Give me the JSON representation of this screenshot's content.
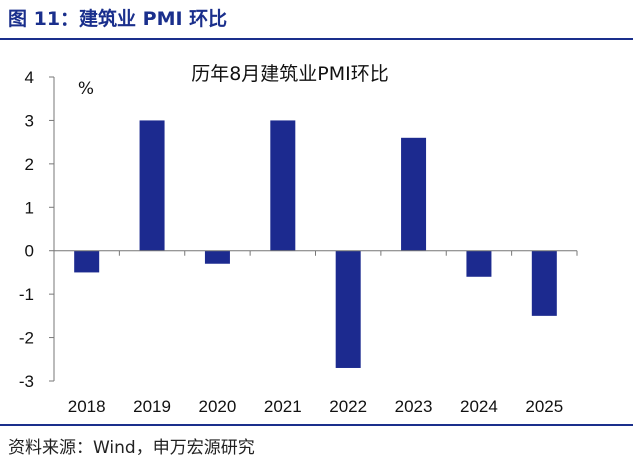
{
  "figure": {
    "title": "图 11：建筑业 PMI 环比",
    "source": "资料来源：Wind，申万宏源研究"
  },
  "colors": {
    "accent": "#1a2f8c",
    "bar": "#1c2a8f"
  },
  "chart_data": {
    "type": "bar",
    "title": "历年8月建筑业PMI环比",
    "ylabel": "%",
    "xlabel": "",
    "categories": [
      "2018",
      "2019",
      "2020",
      "2021",
      "2022",
      "2023",
      "2024",
      "2025"
    ],
    "values": [
      -0.5,
      3.0,
      -0.3,
      3.0,
      -2.7,
      2.6,
      -0.6,
      -1.5
    ],
    "ylim": [
      -3,
      4
    ],
    "yticks": [
      "4",
      "3",
      "2",
      "1",
      "0",
      "-1",
      "-2",
      "-3"
    ],
    "grid": false,
    "legend": "none"
  }
}
